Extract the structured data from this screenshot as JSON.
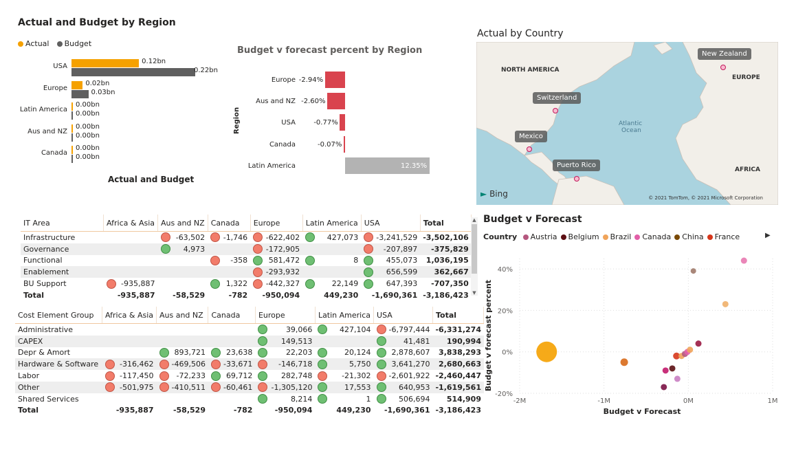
{
  "bar_chart": {
    "title": "Actual and Budget by Region",
    "xlabel": "Actual and Budget",
    "legend": [
      {
        "name": "Actual",
        "color": "#f5a100"
      },
      {
        "name": "Budget",
        "color": "#5f5f5f"
      }
    ],
    "categories": [
      "USA",
      "Europe",
      "Latin America",
      "Aus and NZ",
      "Canada"
    ],
    "actual": [
      0.12,
      0.02,
      0.0,
      0.0,
      0.0
    ],
    "budget": [
      0.22,
      0.03,
      0.0,
      0.0,
      0.0
    ],
    "actual_labels": [
      "0.12bn",
      "0.02bn",
      "0.00bn",
      "0.00bn",
      "0.00bn"
    ],
    "budget_labels": [
      "0.22bn",
      "0.03bn",
      "0.00bn",
      "0.00bn",
      "0.00bn"
    ]
  },
  "forecast_chart": {
    "title": "Budget v forecast percent by Region",
    "ylabel": "Region",
    "categories": [
      "Europe",
      "Aus and NZ",
      "USA",
      "Canada",
      "Latin America"
    ],
    "values": [
      -2.94,
      -2.6,
      -0.77,
      -0.07,
      12.35
    ],
    "labels": [
      "-2.94%",
      "-2.60%",
      "-0.77%",
      "-0.07%",
      "12.35%"
    ],
    "neg_color": "#d9434e",
    "pos_color": "#b3b3b3"
  },
  "map": {
    "title": "Actual by Country",
    "region_labels": [
      "NORTH AMERICA",
      "EUROPE",
      "AFRICA",
      "Atlantic",
      "Ocean"
    ],
    "pins": [
      "New Zealand",
      "Switzerland",
      "Mexico",
      "Puerto Rico"
    ],
    "provider": "Bing",
    "copyright": "© 2021 TomTom, © 2021 Microsoft Corporation"
  },
  "it_table": {
    "headers": [
      "IT Area",
      "Africa & Asia",
      "Aus and NZ",
      "Canada",
      "Europe",
      "Latin America",
      "USA",
      "Total"
    ],
    "rows": [
      {
        "label": "Infrastructure",
        "cells": [
          null,
          {
            "v": "-63,502",
            "k": "r"
          },
          {
            "v": "-1,746",
            "k": "r"
          },
          {
            "v": "-622,402",
            "k": "r"
          },
          {
            "v": "427,073",
            "k": "g"
          },
          {
            "v": "-3,241,529",
            "k": "r"
          }
        ],
        "total": "-3,502,106"
      },
      {
        "label": "Governance",
        "cells": [
          null,
          {
            "v": "4,973",
            "k": "g"
          },
          null,
          {
            "v": "-172,905",
            "k": "r"
          },
          null,
          {
            "v": "-207,897",
            "k": "r"
          }
        ],
        "total": "-375,829"
      },
      {
        "label": "Functional",
        "cells": [
          null,
          null,
          {
            "v": "-358",
            "k": "r"
          },
          {
            "v": "581,472",
            "k": "g"
          },
          {
            "v": "8",
            "k": "g"
          },
          {
            "v": "455,073",
            "k": "g"
          }
        ],
        "total": "1,036,195"
      },
      {
        "label": "Enablement",
        "cells": [
          null,
          null,
          null,
          {
            "v": "-293,932",
            "k": "r"
          },
          null,
          {
            "v": "656,599",
            "k": "g"
          }
        ],
        "total": "362,667"
      },
      {
        "label": "BU Support",
        "cells": [
          {
            "v": "-935,887",
            "k": "r"
          },
          null,
          {
            "v": "1,322",
            "k": "g"
          },
          {
            "v": "-442,327",
            "k": "r"
          },
          {
            "v": "22,149",
            "k": "g"
          },
          {
            "v": "647,393",
            "k": "g"
          }
        ],
        "total": "-707,350"
      }
    ],
    "total_row": {
      "label": "Total",
      "cells": [
        "-935,887",
        "-58,529",
        "-782",
        "-950,094",
        "449,230",
        "-1,690,361"
      ],
      "total": "-3,186,423"
    }
  },
  "cost_table": {
    "headers": [
      "Cost Element Group",
      "Africa & Asia",
      "Aus and NZ",
      "Canada",
      "Europe",
      "Latin America",
      "USA",
      "Total"
    ],
    "rows": [
      {
        "label": "Administrative",
        "cells": [
          null,
          null,
          null,
          {
            "v": "39,066",
            "k": "g"
          },
          {
            "v": "427,104",
            "k": "g"
          },
          {
            "v": "-6,797,444",
            "k": "r"
          }
        ],
        "total": "-6,331,274"
      },
      {
        "label": "CAPEX",
        "cells": [
          null,
          null,
          null,
          {
            "v": "149,513",
            "k": "g"
          },
          null,
          {
            "v": "41,481",
            "k": "g"
          }
        ],
        "total": "190,994"
      },
      {
        "label": "Depr & Amort",
        "cells": [
          null,
          {
            "v": "893,721",
            "k": "g"
          },
          {
            "v": "23,638",
            "k": "g"
          },
          {
            "v": "22,203",
            "k": "g"
          },
          {
            "v": "20,124",
            "k": "g"
          },
          {
            "v": "2,878,607",
            "k": "g"
          }
        ],
        "total": "3,838,293"
      },
      {
        "label": "Hardware & Software",
        "cells": [
          {
            "v": "-316,462",
            "k": "r"
          },
          {
            "v": "-469,506",
            "k": "r"
          },
          {
            "v": "-33,671",
            "k": "r"
          },
          {
            "v": "-146,718",
            "k": "r"
          },
          {
            "v": "5,750",
            "k": "g"
          },
          {
            "v": "3,641,270",
            "k": "g"
          }
        ],
        "total": "2,680,663"
      },
      {
        "label": "Labor",
        "cells": [
          {
            "v": "-117,450",
            "k": "r"
          },
          {
            "v": "-72,233",
            "k": "r"
          },
          {
            "v": "69,712",
            "k": "g"
          },
          {
            "v": "282,748",
            "k": "g"
          },
          {
            "v": "-21,302",
            "k": "r"
          },
          {
            "v": "-2,601,922",
            "k": "r"
          }
        ],
        "total": "-2,460,447"
      },
      {
        "label": "Other",
        "cells": [
          {
            "v": "-501,975",
            "k": "r"
          },
          {
            "v": "-410,511",
            "k": "r"
          },
          {
            "v": "-60,461",
            "k": "r"
          },
          {
            "v": "-1,305,120",
            "k": "r"
          },
          {
            "v": "17,553",
            "k": "g"
          },
          {
            "v": "640,953",
            "k": "g"
          }
        ],
        "total": "-1,619,561"
      },
      {
        "label": "Shared Services",
        "cells": [
          null,
          null,
          null,
          {
            "v": "8,214",
            "k": "g"
          },
          {
            "v": "1",
            "k": "g"
          },
          {
            "v": "506,694",
            "k": "g"
          }
        ],
        "total": "514,909"
      }
    ],
    "total_row": {
      "label": "Total",
      "cells": [
        "-935,887",
        "-58,529",
        "-782",
        "-950,094",
        "449,230",
        "-1,690,361"
      ],
      "total": "-3,186,423"
    }
  },
  "scatter": {
    "title": "Budget v Forecast",
    "legend_title": "Country",
    "legend": [
      {
        "name": "Austria",
        "color": "#b5577f"
      },
      {
        "name": "Belgium",
        "color": "#5c0f13"
      },
      {
        "name": "Brazil",
        "color": "#f0a45a"
      },
      {
        "name": "Canada",
        "color": "#e25fa8"
      },
      {
        "name": "China",
        "color": "#7a4a06"
      },
      {
        "name": "France",
        "color": "#d6361b"
      }
    ],
    "xlabel": "Budget v Forecast",
    "ylabel": "Budget v forecast percent",
    "x_ticks": [
      "-2M",
      "-1M",
      "0M",
      "1M"
    ],
    "y_ticks": [
      "40%",
      "20%",
      "0%",
      "-20%"
    ]
  },
  "chart_data": [
    {
      "type": "bar",
      "title": "Actual and Budget by Region",
      "xlabel": "Actual and Budget",
      "categories": [
        "USA",
        "Europe",
        "Latin America",
        "Aus and NZ",
        "Canada"
      ],
      "series": [
        {
          "name": "Actual",
          "values": [
            0.12,
            0.02,
            0.0,
            0.0,
            0.0
          ]
        },
        {
          "name": "Budget",
          "values": [
            0.22,
            0.03,
            0.0,
            0.0,
            0.0
          ]
        }
      ]
    },
    {
      "type": "bar",
      "title": "Budget v forecast percent by Region",
      "ylabel": "Region",
      "categories": [
        "Europe",
        "Aus and NZ",
        "USA",
        "Canada",
        "Latin America"
      ],
      "values": [
        -2.94,
        -2.6,
        -0.77,
        -0.07,
        12.35
      ]
    },
    {
      "type": "scatter",
      "title": "Budget v Forecast",
      "xlabel": "Budget v Forecast",
      "ylabel": "Budget v forecast percent",
      "xlim": [
        -2000000,
        1000000
      ],
      "ylim": [
        -20,
        45
      ],
      "points": [
        {
          "x": -1680000,
          "y": 0,
          "color": "#f5a100",
          "size": 30
        },
        {
          "x": -760000,
          "y": -5,
          "color": "#d86a1a",
          "size": 11
        },
        {
          "x": -290000,
          "y": -17,
          "color": "#7b1245",
          "size": 9
        },
        {
          "x": -270000,
          "y": -9,
          "color": "#c21a6b",
          "size": 9
        },
        {
          "x": -190000,
          "y": -8,
          "color": "#5c0f13",
          "size": 9
        },
        {
          "x": -130000,
          "y": -13,
          "color": "#c97ec2",
          "size": 9
        },
        {
          "x": -140000,
          "y": -2,
          "color": "#d6361b",
          "size": 10
        },
        {
          "x": -80000,
          "y": -2,
          "color": "#f0a45a",
          "size": 9
        },
        {
          "x": -40000,
          "y": -1,
          "color": "#b5577f",
          "size": 9
        },
        {
          "x": -10000,
          "y": 0,
          "color": "#e25fa8",
          "size": 9
        },
        {
          "x": 20000,
          "y": 1,
          "color": "#f0a45a",
          "size": 9
        },
        {
          "x": 60000,
          "y": 39,
          "color": "#a07a6a",
          "size": 8
        },
        {
          "x": 120000,
          "y": 4,
          "color": "#9a1a42",
          "size": 9
        },
        {
          "x": 440000,
          "y": 23,
          "color": "#f0b06a",
          "size": 9
        },
        {
          "x": 660000,
          "y": 44,
          "color": "#e879b0",
          "size": 9
        }
      ]
    }
  ]
}
